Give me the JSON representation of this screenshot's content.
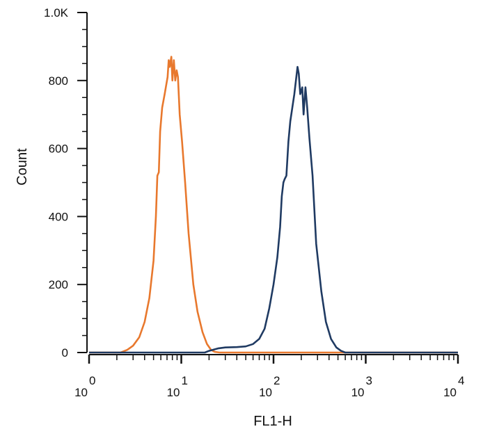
{
  "chart_data": {
    "type": "line",
    "xlabel": "FL1-H",
    "ylabel": "Count",
    "x_scale": "log",
    "xlim": [
      1,
      10000
    ],
    "ylim": [
      0,
      1000
    ],
    "y_ticks": [
      {
        "value": 0,
        "label": "0"
      },
      {
        "value": 200,
        "label": "200"
      },
      {
        "value": 400,
        "label": "400"
      },
      {
        "value": 600,
        "label": "600"
      },
      {
        "value": 800,
        "label": "800"
      },
      {
        "value": 1000,
        "label": "1.0K"
      }
    ],
    "x_ticks": [
      {
        "value": 1,
        "base": "10",
        "exp": "0"
      },
      {
        "value": 10,
        "base": "10",
        "exp": "1"
      },
      {
        "value": 100,
        "base": "10",
        "exp": "2"
      },
      {
        "value": 1000,
        "base": "10",
        "exp": "3"
      },
      {
        "value": 10000,
        "base": "10",
        "exp": "4"
      }
    ],
    "grid": false,
    "series": [
      {
        "color": "#e8782d",
        "points": [
          [
            1,
            0
          ],
          [
            2.2,
            0
          ],
          [
            2.6,
            8
          ],
          [
            3.0,
            20
          ],
          [
            3.5,
            45
          ],
          [
            4.0,
            90
          ],
          [
            4.5,
            160
          ],
          [
            5.0,
            270
          ],
          [
            5.3,
            400
          ],
          [
            5.5,
            520
          ],
          [
            5.7,
            530
          ],
          [
            5.9,
            650
          ],
          [
            6.2,
            720
          ],
          [
            6.4,
            740
          ],
          [
            6.6,
            760
          ],
          [
            6.9,
            790
          ],
          [
            7.1,
            810
          ],
          [
            7.3,
            860
          ],
          [
            7.5,
            840
          ],
          [
            7.8,
            870
          ],
          [
            8.0,
            800
          ],
          [
            8.3,
            860
          ],
          [
            8.6,
            800
          ],
          [
            8.9,
            830
          ],
          [
            9.2,
            810
          ],
          [
            9.6,
            700
          ],
          [
            10.2,
            620
          ],
          [
            11.0,
            500
          ],
          [
            12.0,
            350
          ],
          [
            13.5,
            200
          ],
          [
            15.0,
            120
          ],
          [
            17.0,
            60
          ],
          [
            19.0,
            25
          ],
          [
            21.0,
            8
          ],
          [
            23.0,
            2
          ],
          [
            26.0,
            0
          ],
          [
            10000,
            0
          ]
        ]
      },
      {
        "color": "#1f3a62",
        "points": [
          [
            1,
            0
          ],
          [
            18,
            0
          ],
          [
            20,
            5
          ],
          [
            25,
            12
          ],
          [
            30,
            15
          ],
          [
            40,
            16
          ],
          [
            50,
            18
          ],
          [
            60,
            25
          ],
          [
            70,
            40
          ],
          [
            80,
            70
          ],
          [
            90,
            130
          ],
          [
            100,
            200
          ],
          [
            110,
            280
          ],
          [
            118,
            370
          ],
          [
            123,
            460
          ],
          [
            128,
            500
          ],
          [
            132,
            510
          ],
          [
            138,
            520
          ],
          [
            145,
            620
          ],
          [
            152,
            680
          ],
          [
            160,
            720
          ],
          [
            168,
            760
          ],
          [
            175,
            800
          ],
          [
            182,
            840
          ],
          [
            188,
            820
          ],
          [
            195,
            760
          ],
          [
            205,
            780
          ],
          [
            212,
            700
          ],
          [
            222,
            780
          ],
          [
            232,
            720
          ],
          [
            245,
            630
          ],
          [
            265,
            520
          ],
          [
            290,
            320
          ],
          [
            330,
            180
          ],
          [
            370,
            90
          ],
          [
            420,
            40
          ],
          [
            480,
            15
          ],
          [
            540,
            5
          ],
          [
            600,
            0
          ],
          [
            10000,
            0
          ]
        ]
      }
    ]
  }
}
